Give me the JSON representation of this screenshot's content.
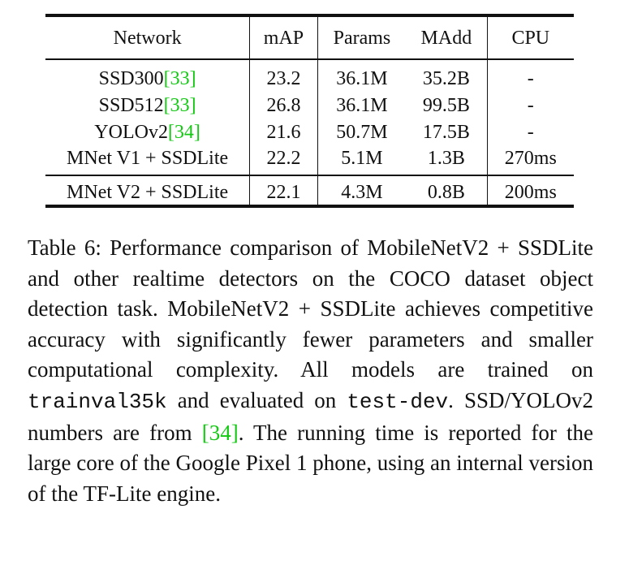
{
  "table": {
    "headers": [
      "Network",
      "mAP",
      "Params",
      "MAdd",
      "CPU"
    ],
    "rows": [
      {
        "network": "SSD300",
        "cite": "[33]",
        "map": "23.2",
        "params": "36.1M",
        "madd": "35.2B",
        "cpu": "-"
      },
      {
        "network": "SSD512",
        "cite": "[33]",
        "map": "26.8",
        "params": "36.1M",
        "madd": "99.5B",
        "cpu": "-"
      },
      {
        "network": "YOLOv2",
        "cite": "[34]",
        "map": "21.6",
        "params": "50.7M",
        "madd": "17.5B",
        "cpu": "-"
      },
      {
        "network": "MNet V1 + SSDLite",
        "cite": "",
        "map": "22.2",
        "params": "5.1M",
        "madd": "1.3B",
        "cpu": "270ms"
      }
    ],
    "ours": {
      "network": "MNet V2 + SSDLite",
      "map": "22.1",
      "params": "4.3M",
      "madd": "0.8B",
      "cpu": "200ms"
    }
  },
  "caption": {
    "part1": "Table 6: Performance comparison of MobileNetV2 + SSDLite and other realtime detectors on the COCO dataset object detection task. MobileNetV2 + SSDLite achieves competitive accuracy with significantly fewer parameters and smaller computational complexity. All models are trained on ",
    "code1": "trainval35k",
    "part2": " and evaluated on ",
    "code2": "test-dev",
    "part3": ". SSD/YOLOv2 numbers are from ",
    "cite": "[34]",
    "part4": ". The running time is reported for the large core of the Google Pixel 1 phone, using an internal version of the TF-Lite engine."
  },
  "colors": {
    "citation": "#14c814",
    "text": "#111111",
    "background": "#ffffff"
  }
}
